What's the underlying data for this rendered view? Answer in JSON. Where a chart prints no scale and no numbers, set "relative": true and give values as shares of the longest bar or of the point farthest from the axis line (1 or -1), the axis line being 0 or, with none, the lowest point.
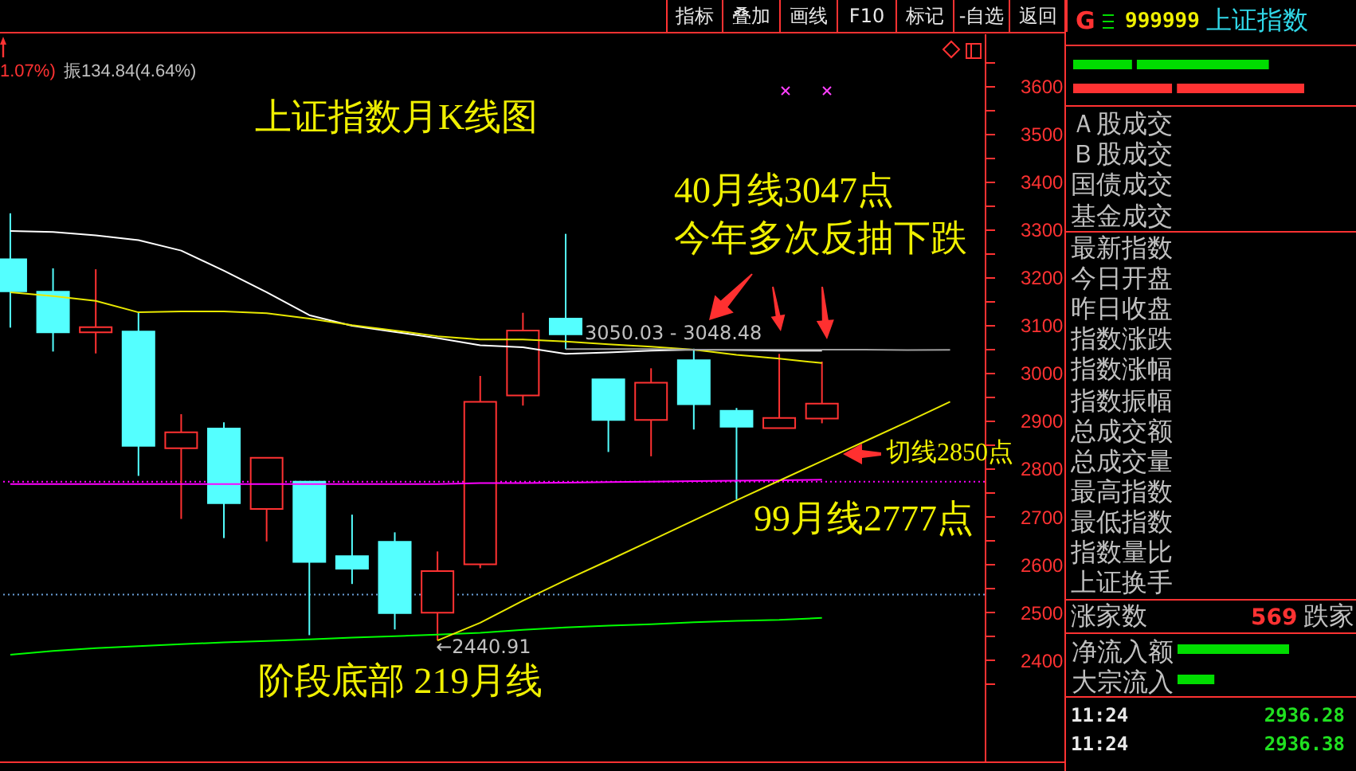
{
  "chart_data": [
    {
      "type": "other",
      "annotations": [
        "指标",
        "叠加",
        "画线",
        "F10",
        "标记",
        "-自选",
        "返回"
      ]
    },
    {
      "type": "candlestick",
      "title": "上证指数月K线图",
      "categories": [
        null,
        null,
        null,
        null,
        null,
        null,
        null,
        null,
        null,
        null,
        null,
        null,
        null,
        null,
        null,
        null,
        null,
        null,
        null,
        null,
        null,
        null,
        null
      ],
      "ohlc": [
        [
          3238,
          3334,
          3095,
          3171
        ],
        [
          3170,
          3219,
          3045,
          3085
        ],
        [
          3085,
          3217,
          3041,
          3096
        ],
        [
          3087,
          3126,
          2785,
          2848
        ],
        [
          2843,
          2914,
          2695,
          2876
        ],
        [
          2884,
          2897,
          2655,
          2728
        ],
        [
          2716,
          2823,
          2648,
          2823
        ],
        [
          2773,
          2773,
          2452,
          2605
        ],
        [
          2617,
          2704,
          2559,
          2591
        ],
        [
          2647,
          2667,
          2464,
          2498
        ],
        [
          2499,
          2627,
          2440.91,
          2586
        ],
        [
          2600,
          2994,
          2592,
          2940
        ],
        [
          2953,
          3126,
          2932,
          3089
        ],
        [
          3114,
          3291,
          3050.03,
          3081
        ],
        [
          2987,
          2987,
          2835,
          2902
        ],
        [
          2902,
          3010,
          2826,
          2980
        ],
        [
          3027,
          3051,
          2882,
          2935
        ],
        [
          2921,
          2927,
          2736,
          2888
        ],
        [
          2885,
          3040,
          2885,
          2906
        ],
        [
          2905,
          3024,
          2895,
          2936
        ],
        null,
        null,
        null
      ],
      "colors": [
        "#54ffff",
        "#54ffff",
        "#ff3232",
        "#54ffff",
        "#ff3232",
        "#54ffff",
        "#ff3232",
        "#54ffff",
        "#54ffff",
        "#54ffff",
        "#ff3232",
        "#ff3232",
        "#ff3232",
        "#54ffff",
        "#54ffff",
        "#ff3232",
        "#54ffff",
        "#54ffff",
        "#ff3232",
        "#ff3232",
        null,
        null,
        null
      ],
      "series": [
        {
          "type": "line",
          "color": "#ffffff",
          "values": [
            3297,
            3295,
            3288,
            3278,
            3256,
            3214,
            3169,
            3121,
            3099,
            3086,
            3073,
            3058,
            3054,
            3040,
            3043,
            3047,
            3049,
            3048,
            3047,
            3047,
            null,
            null,
            null
          ]
        },
        {
          "type": "line",
          "color": "#e8e800",
          "values": [
            3169,
            3161,
            3151,
            3127,
            3129,
            3129,
            3125,
            3114,
            3100,
            3089,
            3077,
            3070,
            3070,
            3066,
            3060,
            3055,
            3049,
            3038,
            3030,
            3021,
            null,
            null,
            null
          ]
        },
        {
          "type": "line",
          "color": "#ff00ff",
          "values": [
            2768,
            2768,
            2768,
            2768,
            2768,
            2768,
            2768,
            2768,
            2768,
            2768,
            2768,
            2770,
            2770,
            2771,
            2772,
            2773,
            2774,
            2775,
            2776,
            2777,
            null,
            null,
            null
          ]
        },
        {
          "type": "line",
          "color": "#00ff00",
          "values": [
            2411,
            2419,
            2425,
            2429,
            2433,
            2437,
            2440,
            2443,
            2447,
            2450,
            2453,
            2457,
            2463,
            2468,
            2472,
            2475,
            2479,
            2482,
            2484,
            2488,
            null,
            null,
            null
          ]
        },
        {
          "type": "line",
          "color": "#e8e800",
          "values": [
            null,
            null,
            null,
            null,
            null,
            null,
            null,
            null,
            null,
            null,
            2440.91,
            2478,
            2524,
            2567,
            2608,
            2650,
            2692,
            2734,
            2775,
            2816,
            2857,
            2898,
            2940
          ]
        },
        {
          "type": "line",
          "name": "3050.03 - 3048.48",
          "color": "#a0a0a0",
          "values": [
            null,
            null,
            null,
            null,
            null,
            null,
            null,
            null,
            null,
            null,
            null,
            null,
            null,
            3050.03,
            3050,
            3050,
            3049,
            3049,
            3049,
            3049,
            3049,
            3048,
            3048.48
          ]
        }
      ],
      "ylim": [
        2188,
        3710
      ],
      "yticks": [
        {
          "value": 2350,
          "label": null
        },
        2400,
        {
          "value": 2450,
          "label": null
        },
        2500,
        {
          "value": 2550,
          "label": null
        },
        2600,
        {
          "value": 2650,
          "label": null
        },
        2700,
        {
          "value": 2750,
          "label": null
        },
        2800,
        {
          "value": 2850,
          "label": null
        },
        2900,
        {
          "value": 2950,
          "label": null
        },
        3000,
        {
          "value": 3050,
          "label": null
        },
        3100,
        {
          "value": 3150,
          "label": null
        },
        3200,
        {
          "value": 3250,
          "label": null
        },
        3300,
        {
          "value": 3350,
          "label": null
        },
        3400,
        {
          "value": 3450,
          "label": null
        },
        3500,
        {
          "value": 3550,
          "label": null
        },
        3600,
        {
          "value": 3650,
          "label": null
        }
      ],
      "ref_lines": [
        {
          "axis": "y",
          "value": 2773,
          "color": "#ff00ff",
          "line_style": "dotted"
        },
        {
          "axis": "y",
          "value": 2537,
          "color": "#6a9fd8",
          "line_style": "dotted"
        }
      ],
      "annotations": [
        "40月线3047点",
        "今年多次反抽下跌",
        "切线2850点",
        "99月线2777点",
        "阶段底部 219月线",
        {
          "text": "←2440.91",
          "y": 2440.91
        },
        "1.07%)",
        "振134.84(4.64%)"
      ]
    },
    {
      "type": "other",
      "annotations": [
        "G",
        "999999",
        "上证指数",
        "Ａ股成交",
        "Ｂ股成交",
        "国债成交",
        "基金成交",
        "最新指数",
        "今日开盘",
        "昨日收盘",
        "指数涨跌",
        "指数涨幅",
        "指数振幅",
        "总成交额",
        "总成交量",
        "最高指数",
        "最低指数",
        "指数量比",
        "上证换手",
        "涨家数",
        "569",
        "跌家",
        "11:24",
        "2936.28",
        "11:24",
        "2936.38"
      ]
    },
    {
      "type": "bar",
      "orientation": "horizontal",
      "stacked": true,
      "relative": true,
      "categories": [
        null,
        null
      ],
      "series": [
        {
          "colors": [
            "#00dd00",
            "#ff3232"
          ],
          "values": [
            0.27,
            0.44
          ]
        },
        {
          "colors": [
            "#00dd00",
            "#ff3232"
          ],
          "values": [
            0.58,
            0.56
          ]
        }
      ]
    },
    {
      "type": "bar",
      "orientation": "horizontal",
      "relative": true,
      "categories": [
        "净流入额",
        "大宗流入"
      ],
      "values": [
        1,
        0.33
      ],
      "color": "#00dd00"
    }
  ]
}
